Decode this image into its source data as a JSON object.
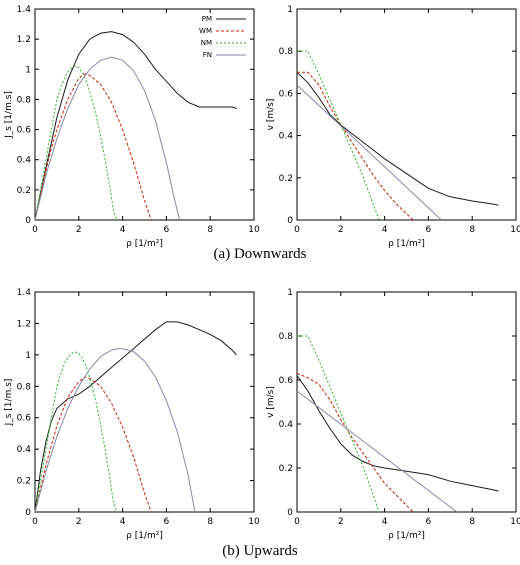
{
  "captions": {
    "a": "(a) Downwards",
    "b": "(b) Upwards"
  },
  "legend": {
    "PM": "PM",
    "WM": "WM",
    "NM": "NM",
    "FN": "FN"
  },
  "colors": {
    "PM": "#1a1a1a",
    "WM": "#cc2200",
    "NM": "#22bb22",
    "FN": "#8888aa"
  },
  "chart_data": [
    {
      "id": "a-left",
      "type": "line",
      "xlabel": "ρ [1/m²]",
      "ylabel": "J_s [1/m.s]",
      "xlim": [
        0,
        10
      ],
      "ylim": [
        0,
        1.4
      ],
      "xticks": [
        0,
        2,
        4,
        6,
        8,
        10
      ],
      "yticks": [
        0,
        0.2,
        0.4,
        0.6,
        0.8,
        1,
        1.2,
        1.4
      ],
      "legend": "top-right",
      "series": [
        {
          "name": "PM",
          "dash": "none",
          "x": [
            0,
            0.5,
            1,
            1.5,
            2,
            2.5,
            3,
            3.5,
            4,
            4.5,
            5,
            5.5,
            6,
            6.5,
            7,
            7.5,
            8,
            8.5,
            9,
            9.2
          ],
          "y": [
            0,
            0.35,
            0.68,
            0.93,
            1.1,
            1.2,
            1.24,
            1.25,
            1.23,
            1.18,
            1.1,
            1.0,
            0.92,
            0.84,
            0.78,
            0.75,
            0.75,
            0.75,
            0.75,
            0.74
          ]
        },
        {
          "name": "WM",
          "dash": "3,2",
          "x": [
            0,
            0.25,
            0.5,
            0.75,
            1,
            1.5,
            2,
            2.3,
            2.5,
            3,
            3.5,
            4,
            4.5,
            5,
            5.3
          ],
          "y": [
            0,
            0.17,
            0.33,
            0.48,
            0.6,
            0.8,
            0.94,
            0.97,
            0.96,
            0.9,
            0.78,
            0.6,
            0.38,
            0.13,
            0
          ]
        },
        {
          "name": "NM",
          "dash": "2,2",
          "x": [
            0,
            0.2,
            0.4,
            0.6,
            0.8,
            1,
            1.2,
            1.4,
            1.6,
            1.8,
            2,
            2.2,
            2.4,
            2.6,
            2.8,
            3,
            3.2,
            3.4,
            3.6,
            3.75
          ],
          "y": [
            0,
            0.16,
            0.32,
            0.48,
            0.64,
            0.8,
            0.89,
            0.96,
            1.0,
            1.02,
            1.01,
            0.97,
            0.9,
            0.8,
            0.69,
            0.55,
            0.4,
            0.23,
            0.05,
            0
          ]
        },
        {
          "name": "FN",
          "dash": "none",
          "x": [
            0,
            0.5,
            1,
            1.5,
            2,
            2.5,
            3,
            3.5,
            4,
            4.5,
            5,
            5.5,
            6,
            6.3,
            6.6
          ],
          "y": [
            0,
            0.3,
            0.54,
            0.74,
            0.9,
            1.0,
            1.06,
            1.08,
            1.06,
            0.99,
            0.86,
            0.66,
            0.38,
            0.18,
            0
          ]
        }
      ]
    },
    {
      "id": "a-right",
      "type": "line",
      "xlabel": "ρ [1/m²]",
      "ylabel": "v [m/s]",
      "xlim": [
        0,
        10
      ],
      "ylim": [
        0,
        1
      ],
      "xticks": [
        0,
        2,
        4,
        6,
        8,
        10
      ],
      "yticks": [
        0,
        0.2,
        0.4,
        0.6,
        0.8,
        1
      ],
      "series": [
        {
          "name": "PM",
          "dash": "none",
          "x": [
            0,
            0.5,
            1,
            1.5,
            2,
            2.5,
            3,
            4,
            5,
            6,
            7,
            8,
            9,
            9.2
          ],
          "y": [
            0.7,
            0.65,
            0.58,
            0.5,
            0.45,
            0.41,
            0.37,
            0.29,
            0.22,
            0.15,
            0.11,
            0.09,
            0.075,
            0.07
          ]
        },
        {
          "name": "WM",
          "dash": "3,2",
          "x": [
            0,
            0.5,
            1,
            1.5,
            2,
            2.5,
            3,
            3.5,
            4,
            4.5,
            5,
            5.3
          ],
          "y": [
            0.7,
            0.7,
            0.64,
            0.54,
            0.45,
            0.37,
            0.29,
            0.21,
            0.14,
            0.08,
            0.03,
            0
          ]
        },
        {
          "name": "NM",
          "dash": "2,2",
          "x": [
            0,
            0.5,
            1,
            1.5,
            2,
            2.5,
            3,
            3.75
          ],
          "y": [
            0.8,
            0.8,
            0.69,
            0.57,
            0.45,
            0.33,
            0.21,
            0
          ]
        },
        {
          "name": "FN",
          "dash": "none",
          "x": [
            0,
            6.6
          ],
          "y": [
            0.64,
            0
          ]
        }
      ]
    },
    {
      "id": "b-left",
      "type": "line",
      "xlabel": "ρ [1/m²]",
      "ylabel": "J_s [1/m.s]",
      "xlim": [
        0,
        10
      ],
      "ylim": [
        0,
        1.4
      ],
      "xticks": [
        0,
        2,
        4,
        6,
        8,
        10
      ],
      "yticks": [
        0,
        0.2,
        0.4,
        0.6,
        0.8,
        1,
        1.2,
        1.4
      ],
      "series": [
        {
          "name": "PM",
          "dash": "none",
          "x": [
            0,
            0.25,
            0.5,
            0.75,
            1,
            1.5,
            2,
            2.5,
            3,
            3.5,
            4,
            4.5,
            5,
            5.5,
            6,
            6.5,
            7,
            7.5,
            8,
            8.5,
            9,
            9.2
          ],
          "y": [
            0,
            0.26,
            0.45,
            0.58,
            0.66,
            0.72,
            0.75,
            0.8,
            0.86,
            0.92,
            0.98,
            1.04,
            1.1,
            1.16,
            1.21,
            1.21,
            1.19,
            1.16,
            1.13,
            1.09,
            1.03,
            1.0
          ]
        },
        {
          "name": "WM",
          "dash": "3,2",
          "x": [
            0,
            0.5,
            1,
            1.5,
            2,
            2.3,
            2.5,
            3,
            3.5,
            4,
            4.5,
            5,
            5.3
          ],
          "y": [
            0,
            0.3,
            0.55,
            0.73,
            0.83,
            0.86,
            0.85,
            0.8,
            0.69,
            0.54,
            0.35,
            0.12,
            0
          ]
        },
        {
          "name": "NM",
          "dash": "2,2",
          "x": [
            0,
            0.2,
            0.4,
            0.6,
            0.8,
            1,
            1.2,
            1.4,
            1.6,
            1.8,
            2,
            2.2,
            2.4,
            2.6,
            2.8,
            3,
            3.2,
            3.4,
            3.6,
            3.75
          ],
          "y": [
            0,
            0.16,
            0.32,
            0.48,
            0.64,
            0.8,
            0.89,
            0.96,
            1.0,
            1.02,
            1.01,
            0.97,
            0.9,
            0.8,
            0.69,
            0.55,
            0.4,
            0.23,
            0.05,
            0
          ]
        },
        {
          "name": "FN",
          "dash": "none",
          "x": [
            0,
            0.5,
            1,
            1.5,
            2,
            2.5,
            3,
            3.5,
            3.8,
            4,
            4.5,
            5,
            5.5,
            6,
            6.5,
            7,
            7.3
          ],
          "y": [
            0,
            0.26,
            0.48,
            0.66,
            0.8,
            0.91,
            0.99,
            1.03,
            1.04,
            1.04,
            1.02,
            0.96,
            0.86,
            0.71,
            0.51,
            0.23,
            0
          ]
        }
      ]
    },
    {
      "id": "b-right",
      "type": "line",
      "xlabel": "ρ [1/m²]",
      "ylabel": "v [m/s]",
      "xlim": [
        0,
        10
      ],
      "ylim": [
        0,
        1
      ],
      "xticks": [
        0,
        2,
        4,
        6,
        8,
        10
      ],
      "yticks": [
        0,
        0.2,
        0.4,
        0.6,
        0.8,
        1
      ],
      "series": [
        {
          "name": "PM",
          "dash": "none",
          "x": [
            0,
            0.5,
            1,
            1.5,
            2,
            2.5,
            3,
            3.5,
            4,
            5,
            6,
            7,
            8,
            9,
            9.2
          ],
          "y": [
            0.62,
            0.55,
            0.46,
            0.38,
            0.31,
            0.26,
            0.23,
            0.21,
            0.2,
            0.185,
            0.17,
            0.14,
            0.12,
            0.1,
            0.095
          ]
        },
        {
          "name": "WM",
          "dash": "3,2",
          "x": [
            0,
            0.5,
            1,
            1.5,
            2,
            2.5,
            3,
            3.5,
            4,
            4.5,
            5,
            5.3
          ],
          "y": [
            0.63,
            0.61,
            0.58,
            0.51,
            0.42,
            0.34,
            0.27,
            0.2,
            0.13,
            0.08,
            0.03,
            0
          ]
        },
        {
          "name": "NM",
          "dash": "2,2",
          "x": [
            0,
            0.5,
            1,
            1.5,
            2,
            2.5,
            3,
            3.75
          ],
          "y": [
            0.8,
            0.8,
            0.69,
            0.57,
            0.45,
            0.33,
            0.21,
            0
          ]
        },
        {
          "name": "FN",
          "dash": "none",
          "x": [
            0,
            7.3
          ],
          "y": [
            0.55,
            0
          ]
        }
      ]
    }
  ]
}
